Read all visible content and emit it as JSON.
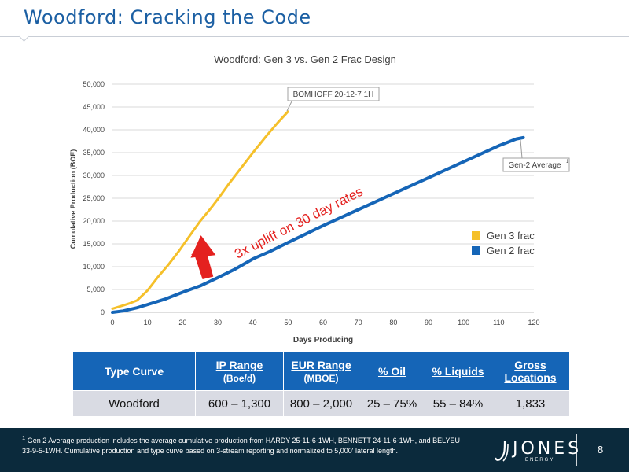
{
  "header": {
    "title": "Woodford: Cracking the Code"
  },
  "chart_data": {
    "type": "line",
    "title": "Woodford: Gen 3 vs. Gen 2 Frac Design",
    "xlabel": "Days Producing",
    "ylabel": "Cumulative Production (BOE)",
    "xlim": [
      0,
      120
    ],
    "ylim": [
      0,
      50000
    ],
    "x_ticks": [
      "0",
      "10",
      "20",
      "30",
      "40",
      "50",
      "60",
      "70",
      "80",
      "90",
      "100",
      "110",
      "120"
    ],
    "y_ticks": [
      "0",
      "5,000",
      "10,000",
      "15,000",
      "20,000",
      "25,000",
      "30,000",
      "35,000",
      "40,000",
      "45,000",
      "50,000"
    ],
    "grid": true,
    "legend_position": "right",
    "series": [
      {
        "name": "Gen 3 frac",
        "color": "#f5c02a",
        "points": [
          [
            0,
            800
          ],
          [
            3,
            1500
          ],
          [
            5,
            2000
          ],
          [
            7,
            2600
          ],
          [
            10,
            4800
          ],
          [
            13,
            7800
          ],
          [
            16,
            10500
          ],
          [
            19,
            13500
          ],
          [
            22,
            16800
          ],
          [
            25,
            20000
          ],
          [
            28,
            22800
          ],
          [
            30,
            24800
          ],
          [
            33,
            28000
          ],
          [
            36,
            31000
          ],
          [
            40,
            35000
          ],
          [
            44,
            38800
          ],
          [
            47,
            41500
          ],
          [
            50,
            44000
          ]
        ]
      },
      {
        "name": "Gen 2 frac",
        "color": "#1565b7",
        "points": [
          [
            0,
            0
          ],
          [
            3,
            300
          ],
          [
            7,
            1000
          ],
          [
            10,
            1700
          ],
          [
            15,
            2900
          ],
          [
            20,
            4400
          ],
          [
            25,
            5800
          ],
          [
            30,
            7600
          ],
          [
            35,
            9500
          ],
          [
            40,
            11700
          ],
          [
            45,
            13400
          ],
          [
            50,
            15300
          ],
          [
            60,
            19000
          ],
          [
            70,
            22500
          ],
          [
            80,
            26000
          ],
          [
            90,
            29500
          ],
          [
            100,
            33000
          ],
          [
            110,
            36500
          ],
          [
            115,
            38000
          ],
          [
            117,
            38300
          ]
        ]
      }
    ],
    "annotations": [
      {
        "text": "BOMHOFF 20-12-7 1H",
        "x": 50,
        "y": 44000
      },
      {
        "text": "Gen-2 Average",
        "superscript": "1",
        "x": 117,
        "y": 38300
      },
      {
        "text": "3x uplift on 30 day rates",
        "color": "#e4211f"
      }
    ]
  },
  "table": {
    "headers": [
      {
        "main": "Type Curve",
        "sub": "",
        "underline": false
      },
      {
        "main": "IP Range",
        "sub": "(Boe/d)",
        "underline": true
      },
      {
        "main": "EUR Range",
        "sub": "(MBOE)",
        "underline": true
      },
      {
        "main": "% Oil",
        "sub": "",
        "underline": true
      },
      {
        "main": "% Liquids",
        "sub": "",
        "underline": true
      },
      {
        "main": "Gross Locations",
        "sub": "",
        "underline": true
      }
    ],
    "rows": [
      [
        "Woodford",
        "600 – 1,300",
        "800 – 2,000",
        "25 – 75%",
        "55 – 84%",
        "1,833"
      ]
    ]
  },
  "footer": {
    "footnote_marker": "1",
    "footnote": "Gen 2 Average production includes the average cumulative production from HARDY 25-11-6-1WH, BENNETT 24-11-6-1WH, and BELYEU 33-9-5-1WH. Cumulative production and type curve based on 3-stream reporting and normalized to 5,000' lateral length.",
    "logo_text": "JONES",
    "logo_sub": "ENERGY",
    "page_number": "8"
  }
}
